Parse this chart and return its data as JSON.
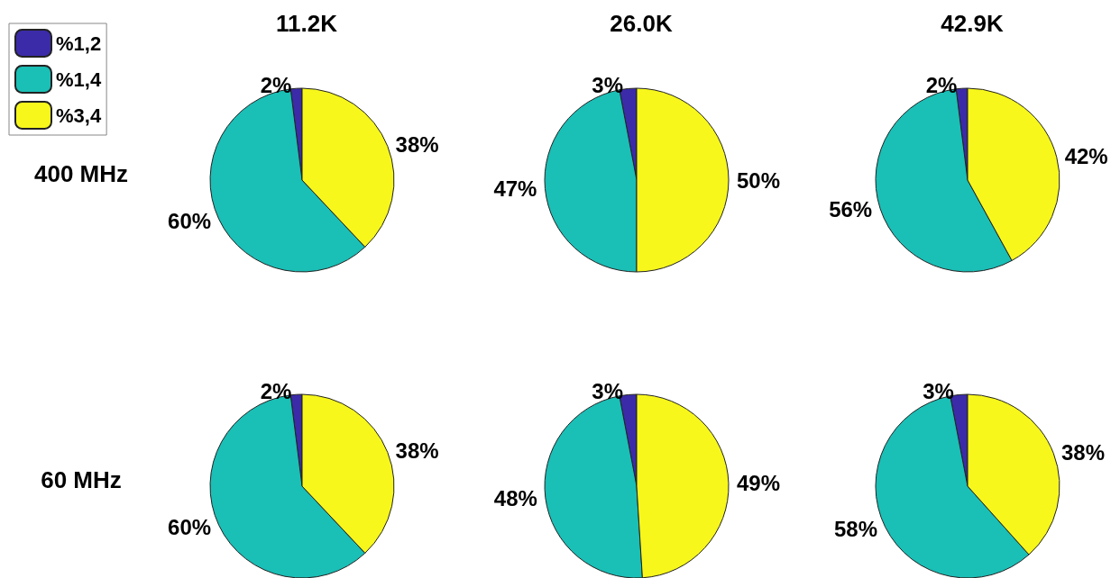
{
  "chart_data": [
    {
      "type": "pie",
      "title": "11.2K",
      "ylabel": "400 MHz",
      "legend": "top left",
      "categories": [
        "%1,2",
        "%1,4",
        "%3,4"
      ],
      "values": [
        2,
        60,
        38
      ],
      "value_labels": [
        "2%",
        "60%",
        "38%"
      ],
      "colors": [
        "#3b2ba8",
        "#1abfb6",
        "#f7f71b"
      ]
    },
    {
      "type": "pie",
      "title": "26.0K",
      "categories": [
        null,
        null,
        null
      ],
      "values": [
        3,
        47,
        50
      ],
      "value_labels": [
        "3%",
        "47%",
        "50%"
      ],
      "colors": [
        "#3b2ba8",
        "#1abfb6",
        "#f7f71b"
      ]
    },
    {
      "type": "pie",
      "title": "42.9K",
      "categories": [
        null,
        null,
        null
      ],
      "values": [
        2,
        56,
        42
      ],
      "value_labels": [
        "2%",
        "56%",
        "42%"
      ],
      "colors": [
        "#3b2ba8",
        "#1abfb6",
        "#f7f71b"
      ]
    },
    {
      "type": "pie",
      "ylabel": "60 MHz",
      "categories": [
        null,
        null,
        null
      ],
      "values": [
        2,
        60,
        38
      ],
      "value_labels": [
        "2%",
        "60%",
        "38%"
      ],
      "colors": [
        "#3b2ba8",
        "#1abfb6",
        "#f7f71b"
      ]
    },
    {
      "type": "pie",
      "categories": [
        null,
        null,
        null
      ],
      "values": [
        3,
        48,
        49
      ],
      "value_labels": [
        "3%",
        "48%",
        "49%"
      ],
      "colors": [
        "#3b2ba8",
        "#1abfb6",
        "#f7f71b"
      ]
    },
    {
      "type": "pie",
      "categories": [
        null,
        null,
        null
      ],
      "values": [
        3,
        58,
        38
      ],
      "value_labels": [
        "3%",
        "58%",
        "38%"
      ],
      "colors": [
        "#3b2ba8",
        "#1abfb6",
        "#f7f71b"
      ]
    }
  ]
}
